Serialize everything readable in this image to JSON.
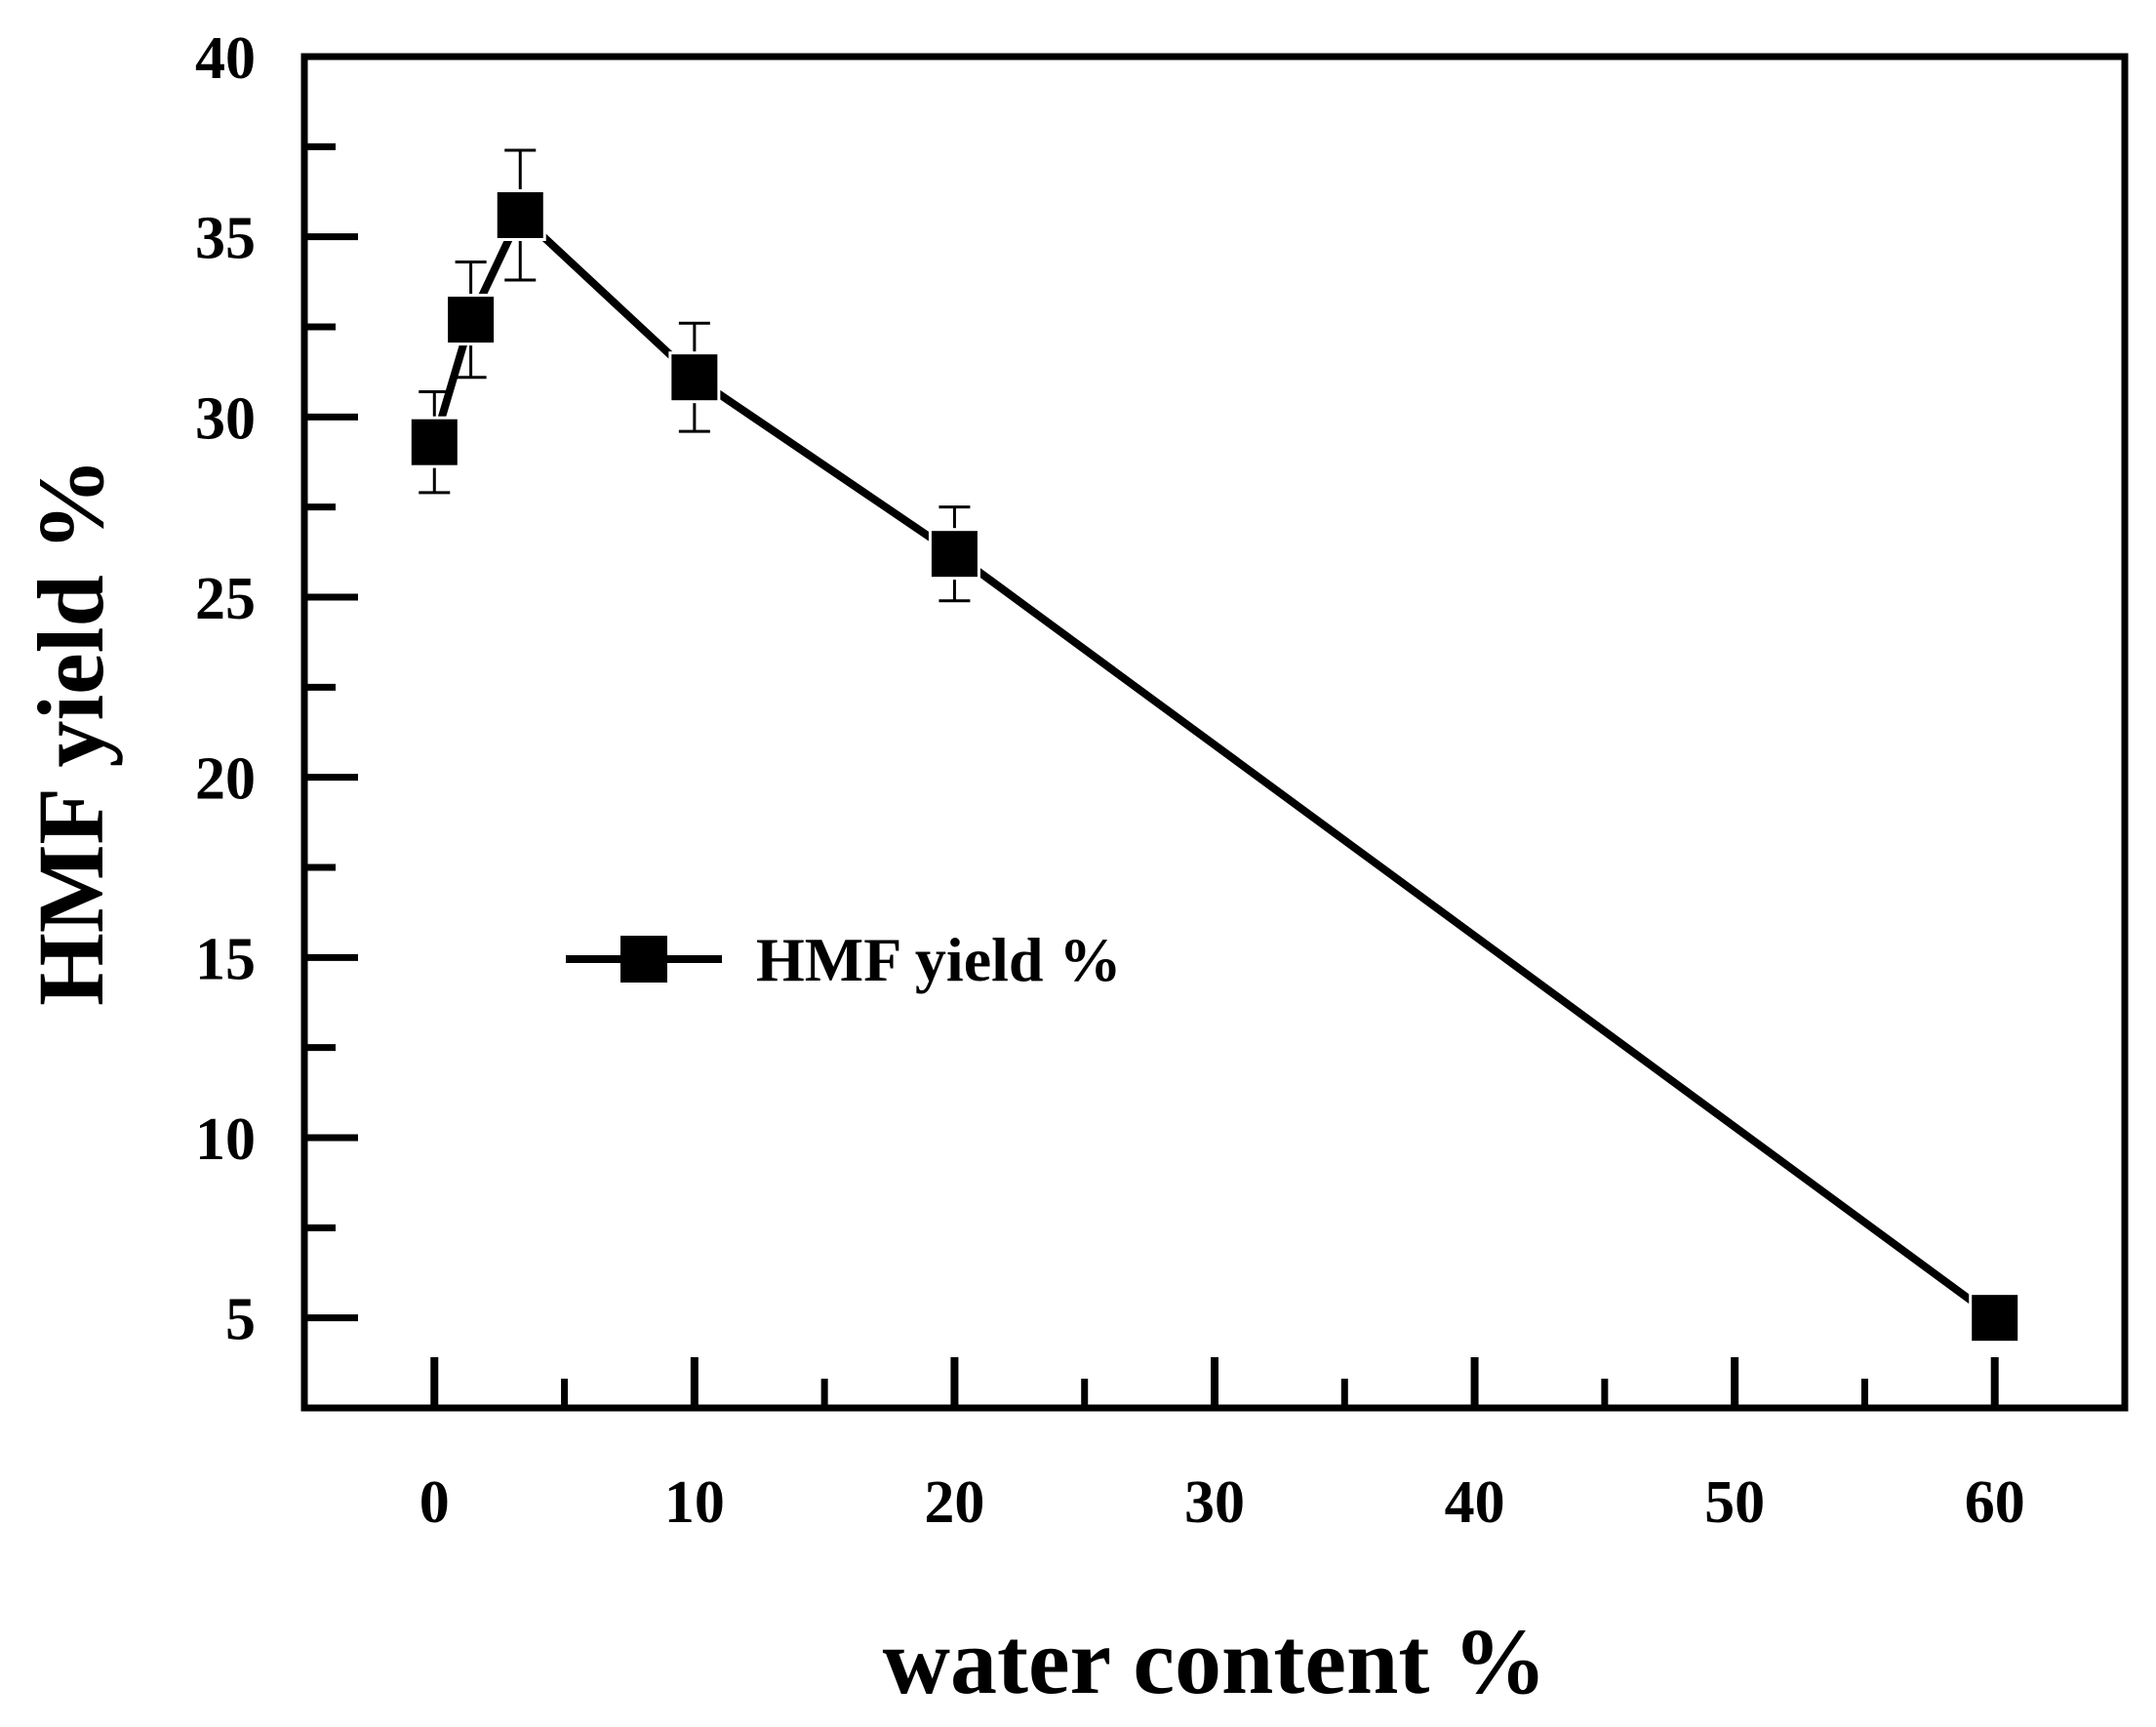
{
  "chart_data": {
    "type": "line",
    "xlabel": "water content %",
    "ylabel": "HMF yield %",
    "xlim": [
      -5,
      65
    ],
    "ylim": [
      2.5,
      40
    ],
    "xticks": [
      0,
      10,
      20,
      30,
      40,
      50,
      60
    ],
    "xticks_minor": [
      5,
      15,
      25,
      35,
      45,
      55
    ],
    "yticks": [
      5,
      10,
      15,
      20,
      25,
      30,
      35,
      40
    ],
    "yticks_minor": [
      7.5,
      12.5,
      17.5,
      22.5,
      27.5,
      32.5,
      37.5
    ],
    "grid": false,
    "legend_position": "center-left",
    "series": [
      {
        "name": "HMF yield %",
        "marker": "square",
        "color": "#000000",
        "x": [
          0,
          1.4,
          3.3,
          10,
          20,
          60
        ],
        "y": [
          29.3,
          32.7,
          35.6,
          31.1,
          26.2,
          5.0
        ],
        "error": [
          1.4,
          1.6,
          1.8,
          1.5,
          1.3,
          0
        ]
      }
    ]
  }
}
